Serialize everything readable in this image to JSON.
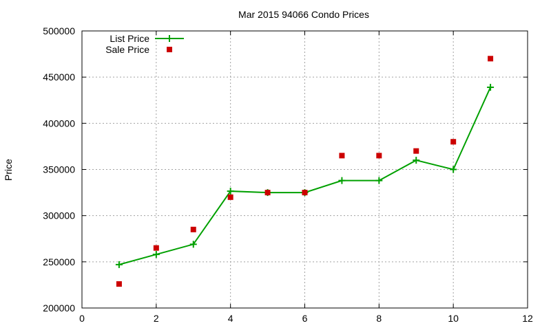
{
  "chart_data": {
    "type": "line",
    "title": "Mar 2015 94066 Condo Prices",
    "xlabel": "",
    "ylabel": "Price",
    "xlim": [
      0,
      12
    ],
    "ylim": [
      200000,
      500000
    ],
    "xticks": [
      0,
      2,
      4,
      6,
      8,
      10,
      12
    ],
    "yticks": [
      200000,
      250000,
      300000,
      350000,
      400000,
      450000,
      500000
    ],
    "grid": true,
    "legend_position": "top-left",
    "x": [
      1,
      2,
      3,
      4,
      5,
      6,
      7,
      8,
      9,
      10,
      11
    ],
    "series": [
      {
        "name": "List Price",
        "style": "linespoints",
        "color": "#00a000",
        "marker": "plus",
        "values": [
          247000,
          258000,
          269000,
          326500,
          325000,
          325000,
          338000,
          338000,
          360000,
          350000,
          439000
        ]
      },
      {
        "name": "Sale Price",
        "style": "points",
        "color": "#cc0000",
        "marker": "square",
        "values": [
          226000,
          265000,
          285000,
          320000,
          325000,
          325000,
          365000,
          365000,
          370000,
          380000,
          470000
        ]
      }
    ]
  }
}
